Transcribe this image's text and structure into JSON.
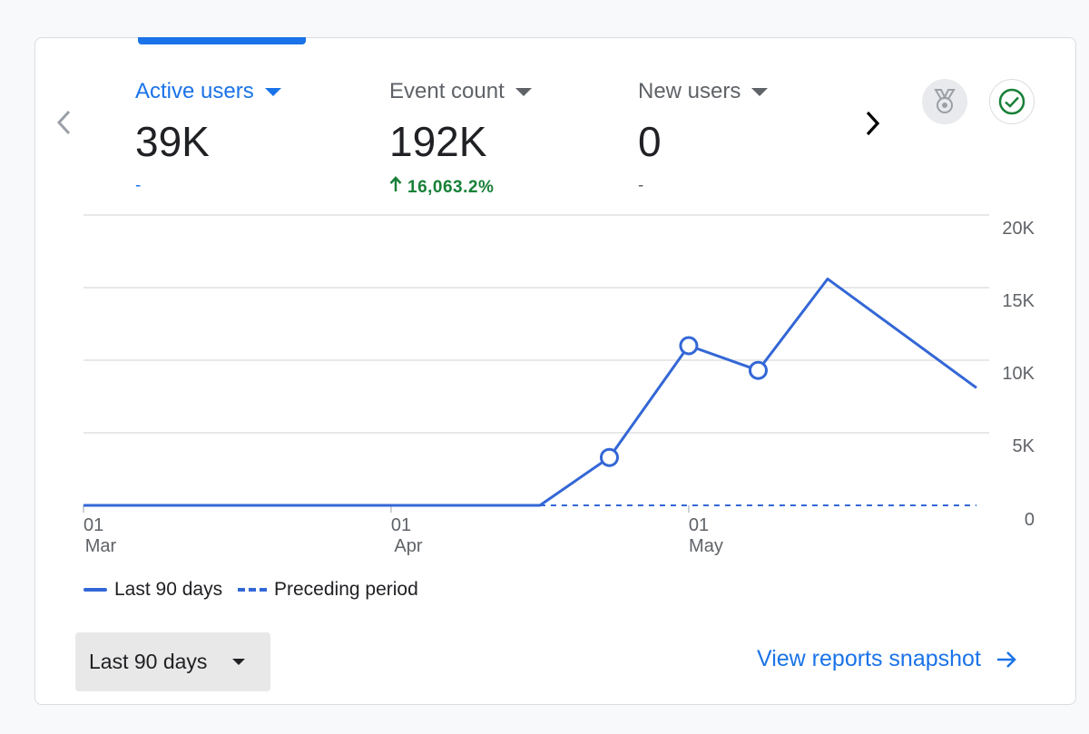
{
  "colors": {
    "accent": "#1a73e8",
    "line": "#3367d6",
    "positive": "#188038",
    "check": "#188038",
    "grid": "#e0e0e0",
    "axis_text": "#5f6368"
  },
  "icons": {
    "prev": "chevron-left-icon",
    "next": "chevron-right-icon",
    "medal": "medal-icon",
    "check": "check-circle-icon",
    "arrow": "arrow-right-icon",
    "up": "arrow-up-icon"
  },
  "metrics": [
    {
      "label": "Active users",
      "value": "39K",
      "change": "-",
      "selected": true
    },
    {
      "label": "Event count",
      "value": "192K",
      "change": "16,063.2%",
      "trend": "up"
    },
    {
      "label": "New users",
      "value": "0",
      "change": "-"
    }
  ],
  "legend": {
    "current": "Last 90 days",
    "previous": "Preceding period"
  },
  "date_range": {
    "selected": "Last 90 days"
  },
  "snapshot_link": "View reports snapshot",
  "chart_data": {
    "type": "line",
    "series": [
      {
        "name": "Last 90 days",
        "style": "solid",
        "x": [
          0,
          31,
          46,
          53,
          61,
          68,
          75,
          90
        ],
        "values": [
          0,
          0,
          0,
          3300,
          11000,
          9300,
          15600,
          8100
        ],
        "markers": [
          false,
          false,
          false,
          true,
          true,
          true,
          false,
          false
        ]
      },
      {
        "name": "Preceding period",
        "style": "dashed",
        "x": [
          46,
          90
        ],
        "values": [
          0,
          0
        ]
      }
    ],
    "x_range": [
      0,
      90
    ],
    "x_ticks": [
      {
        "x": 0,
        "day": "01",
        "month": "Mar"
      },
      {
        "x": 31,
        "day": "01",
        "month": "Apr"
      },
      {
        "x": 61,
        "day": "01",
        "month": "May"
      }
    ],
    "y_ticks": [
      {
        "value": 0,
        "label": "0"
      },
      {
        "value": 5000,
        "label": "5K"
      },
      {
        "value": 10000,
        "label": "10K"
      },
      {
        "value": 15000,
        "label": "15K"
      },
      {
        "value": 20000,
        "label": "20K"
      }
    ],
    "ylim": [
      0,
      20000
    ],
    "y_axis_side": "right",
    "grid": true
  }
}
